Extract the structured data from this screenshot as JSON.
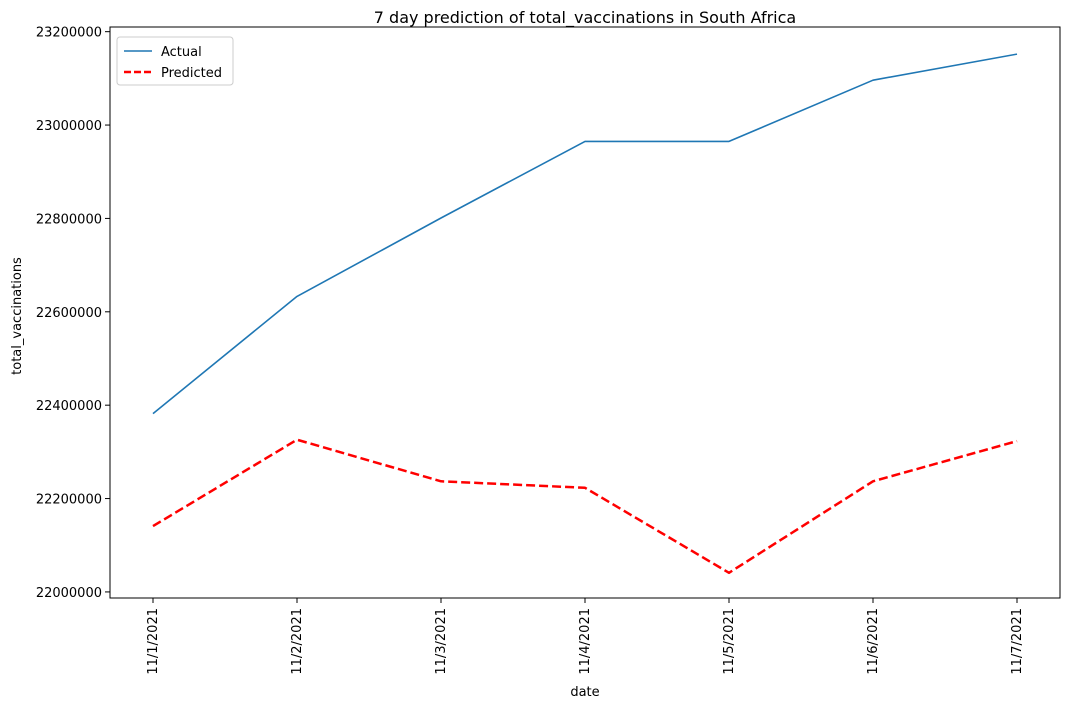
{
  "chart_data": {
    "type": "line",
    "title": "7 day prediction of total_vaccinations in South Africa",
    "xlabel": "date",
    "ylabel": "total_vaccinations",
    "categories": [
      "11/1/2021",
      "11/2/2021",
      "11/3/2021",
      "11/4/2021",
      "11/5/2021",
      "11/6/2021",
      "11/7/2021"
    ],
    "yticks": [
      22000000,
      22200000,
      22400000,
      22600000,
      22800000,
      23000000,
      23200000
    ],
    "ylim": [
      21987000,
      23210000
    ],
    "legend_position": "top-left",
    "grid": false,
    "series": [
      {
        "name": "Actual",
        "color": "#1f77b4",
        "style": "solid",
        "values": [
          22382000,
          22633000,
          22801000,
          22965000,
          22965000,
          23096000,
          23152000
        ]
      },
      {
        "name": "Predicted",
        "color": "#ff0000",
        "style": "dashed",
        "values": [
          22141000,
          22326000,
          22237000,
          22223000,
          22041000,
          22237000,
          22323000
        ]
      }
    ]
  }
}
